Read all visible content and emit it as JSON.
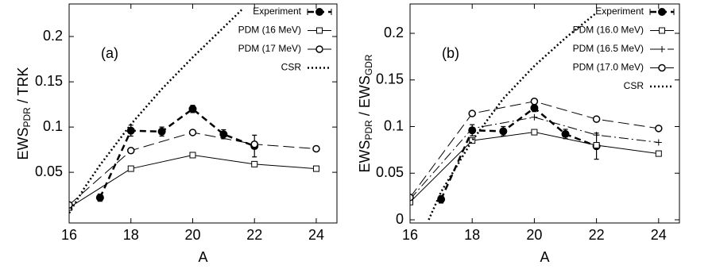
{
  "chart_data": [
    {
      "type": "line",
      "annotation": "(a)",
      "xlabel": "A",
      "ylabel": [
        "EWS",
        "PDR",
        " / TRK"
      ],
      "xlim": [
        16,
        24.67
      ],
      "ylim": [
        -0.006,
        0.236
      ],
      "xticks": [
        16,
        18,
        20,
        22,
        24
      ],
      "yticks": [
        0.05,
        0.1,
        0.15,
        0.2
      ],
      "legend": "upper right",
      "series": [
        {
          "name": "Experiment",
          "color": "#000000",
          "marker": "filled-circle",
          "dash": "8,5",
          "width": 2.5,
          "x": [
            17,
            18,
            19,
            20,
            21,
            22
          ],
          "values": [
            0.022,
            0.096,
            0.095,
            0.12,
            0.092,
            0.079
          ],
          "errors": [
            0.004,
            0.006,
            0.005,
            0.004,
            0.005,
            0.012
          ]
        },
        {
          "name": "PDM (16 MeV)",
          "color": "#000000",
          "marker": "open-square",
          "dash": "none",
          "width": 1,
          "x": [
            16,
            18,
            20,
            22,
            24
          ],
          "values": [
            0.011,
            0.054,
            0.069,
            0.059,
            0.054
          ]
        },
        {
          "name": "PDM (17 MeV)",
          "color": "#000000",
          "marker": "open-circle",
          "dash": "14,6",
          "width": 1,
          "x": [
            16,
            18,
            20,
            22,
            24
          ],
          "values": [
            0.014,
            0.074,
            0.094,
            0.081,
            0.076
          ]
        },
        {
          "name": "CSR",
          "color": "#000000",
          "marker": "none",
          "dash": "2,3",
          "width": 2.5,
          "x": [
            16,
            16.5,
            17,
            18,
            19,
            20,
            21,
            21.6
          ],
          "values": [
            0.005,
            0.033,
            0.058,
            0.103,
            0.142,
            0.177,
            0.21,
            0.23
          ]
        }
      ]
    },
    {
      "type": "line",
      "annotation": "(b)",
      "xlabel": "A",
      "ylabel": [
        "EWS",
        "PDR",
        " / EWS",
        "GDR"
      ],
      "xlim": [
        16,
        24.67
      ],
      "ylim": [
        -0.0034,
        0.2315
      ],
      "xticks": [
        16,
        18,
        20,
        22,
        24
      ],
      "yticks": [
        0,
        0.05,
        0.1,
        0.15,
        0.2
      ],
      "legend": "upper right",
      "series": [
        {
          "name": "Experiment",
          "color": "#000000",
          "marker": "filled-circle",
          "dash": "8,5",
          "width": 2.5,
          "x": [
            17,
            18,
            19,
            20,
            21,
            22
          ],
          "values": [
            0.022,
            0.096,
            0.095,
            0.12,
            0.092,
            0.079
          ],
          "errors": [
            0.004,
            0.006,
            0.005,
            0.004,
            0.005,
            0.014
          ]
        },
        {
          "name": "PDM (16.0 MeV)",
          "color": "#000000",
          "marker": "open-square",
          "dash": "none",
          "width": 1,
          "x": [
            16,
            18,
            20,
            22,
            24
          ],
          "values": [
            0.019,
            0.085,
            0.094,
            0.08,
            0.071
          ]
        },
        {
          "name": "PDM (16.5 MeV)",
          "color": "#000000",
          "marker": "plus",
          "dash": "12,4,2,4",
          "width": 1,
          "x": [
            16,
            18,
            20,
            22,
            24
          ],
          "values": [
            0.022,
            0.098,
            0.11,
            0.091,
            0.083
          ]
        },
        {
          "name": "PDM (17.0 MeV)",
          "color": "#000000",
          "marker": "open-circle",
          "dash": "14,6",
          "width": 1,
          "x": [
            16,
            18,
            20,
            22,
            24
          ],
          "values": [
            0.024,
            0.114,
            0.127,
            0.108,
            0.098
          ]
        },
        {
          "name": "CSR",
          "color": "#000000",
          "marker": "none",
          "dash": "2,3",
          "width": 2.5,
          "x": [
            16.6,
            17,
            18,
            19,
            20,
            21,
            22
          ],
          "values": [
            0,
            0.03,
            0.085,
            0.13,
            0.165,
            0.195,
            0.222
          ]
        }
      ]
    }
  ]
}
